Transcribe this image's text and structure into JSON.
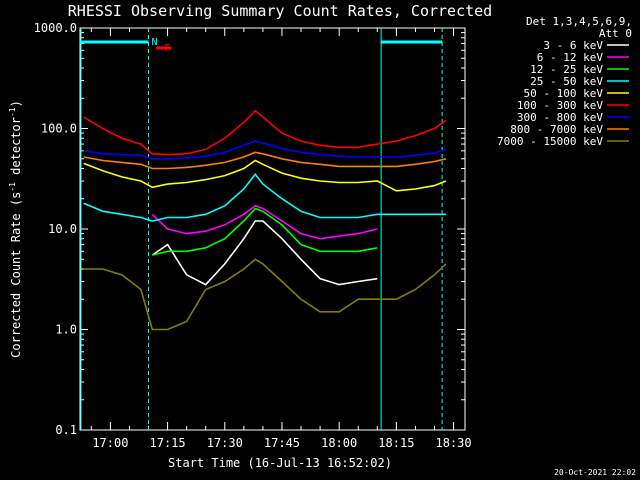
{
  "chart_data": {
    "type": "line",
    "title": "RHESSI Observing Summary Count Rates, Corrected",
    "xlabel": "Start Time (16-Jul-13 16:52:02)",
    "ylabel": "Corrected Count Rate (s⁻¹ detector⁻¹)",
    "ylabel_main": "Corrected Count Rate (s",
    "ylabel_sup1": "-1",
    "ylabel_mid": " detector",
    "ylabel_sup2": "-1",
    "ylabel_end": ")",
    "yscale": "log",
    "ylim": [
      0.1,
      1000
    ],
    "y_ticks": [
      "1000.0",
      "100.0",
      "10.0",
      "1.0",
      "0.1"
    ],
    "xlim": [
      "16:52:02",
      "18:33:00"
    ],
    "x_ticks": [
      "17:00",
      "17:15",
      "17:30",
      "17:45",
      "18:00",
      "18:15",
      "18:30"
    ],
    "legend_header": [
      "Det 1,3,4,5,6,9,",
      "Att 0"
    ],
    "footer_date": "20-Oct-2021 22:02",
    "flags": [
      {
        "label": "N",
        "color": "#00ffff",
        "segments": [
          [
            "16:52",
            "17:10"
          ],
          [
            "18:11",
            "18:27"
          ]
        ]
      },
      {
        "label": "F",
        "color": "#ff0000",
        "segments": [
          [
            "17:12",
            "17:16"
          ]
        ]
      }
    ],
    "night_boundaries": [
      "17:10",
      "18:11",
      "18:27"
    ],
    "x": [
      "16:53",
      "16:58",
      "17:03",
      "17:08",
      "17:11",
      "17:15",
      "17:20",
      "17:25",
      "17:30",
      "17:35",
      "17:38",
      "17:40",
      "17:45",
      "17:50",
      "17:55",
      "18:00",
      "18:05",
      "18:10",
      "18:15",
      "18:20",
      "18:25",
      "18:28"
    ],
    "series": [
      {
        "name": "3 - 6 keV",
        "color": "#ffffff",
        "values": [
          null,
          null,
          null,
          null,
          5.5,
          7,
          3.5,
          2.8,
          4.5,
          8,
          12,
          12,
          8,
          5,
          3.2,
          2.8,
          3,
          3.2,
          null,
          null,
          null,
          null
        ]
      },
      {
        "name": "6 - 12 keV",
        "color": "#ff00ff",
        "values": [
          null,
          null,
          null,
          null,
          14,
          10,
          9,
          9.5,
          11,
          14,
          17,
          16,
          12,
          9,
          8,
          8.5,
          9,
          10,
          null,
          null,
          null,
          null
        ]
      },
      {
        "name": "12 - 25 keV",
        "color": "#00ff00",
        "values": [
          null,
          null,
          null,
          null,
          5.5,
          6,
          6,
          6.5,
          8,
          12,
          16,
          15,
          11,
          7,
          6,
          6,
          6,
          6.5,
          null,
          null,
          null,
          null
        ]
      },
      {
        "name": "25 - 50 keV",
        "color": "#00ffff",
        "values": [
          18,
          15,
          14,
          13,
          12,
          13,
          13,
          14,
          17,
          25,
          35,
          28,
          20,
          15,
          13,
          13,
          13,
          14,
          14,
          14,
          14,
          14
        ]
      },
      {
        "name": "50 - 100 keV",
        "color": "#ffff00",
        "values": [
          45,
          38,
          33,
          30,
          26,
          28,
          29,
          31,
          34,
          40,
          48,
          44,
          36,
          32,
          30,
          29,
          29,
          30,
          24,
          25,
          27,
          30
        ]
      },
      {
        "name": "100 - 300 keV",
        "color": "#ff0000",
        "values": [
          130,
          100,
          80,
          70,
          56,
          55,
          56,
          62,
          80,
          115,
          150,
          130,
          90,
          75,
          68,
          65,
          65,
          70,
          75,
          85,
          100,
          120
        ]
      },
      {
        "name": "300 - 800 keV",
        "color": "#0000ff",
        "values": [
          60,
          56,
          55,
          54,
          50,
          50,
          51,
          53,
          58,
          68,
          75,
          72,
          63,
          58,
          55,
          53,
          52,
          52,
          52,
          54,
          57,
          62
        ]
      },
      {
        "name": "800 - 7000 keV",
        "color": "#ff8000",
        "values": [
          52,
          48,
          46,
          44,
          40,
          40,
          41,
          43,
          46,
          52,
          58,
          56,
          50,
          46,
          44,
          42,
          42,
          42,
          42,
          44,
          47,
          50
        ]
      },
      {
        "name": "7000 - 15000 keV",
        "color": "#808000",
        "values": [
          4,
          4,
          3.5,
          2.5,
          1,
          1,
          1.2,
          2.5,
          3,
          4,
          5,
          4.5,
          3,
          2,
          1.5,
          1.5,
          2,
          2,
          2,
          2.5,
          3.5,
          4.5
        ]
      }
    ]
  }
}
